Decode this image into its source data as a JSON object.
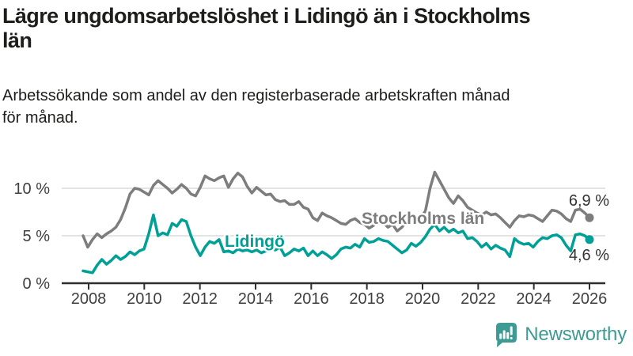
{
  "header": {
    "title_lines": [
      "Lägre ungdomsarbetslöshet i Lidingö än i Stockholms",
      "län"
    ],
    "subtitle_lines": [
      "Arbetssökande som andel av den registerbaserade arbetskraften månad",
      "för månad."
    ]
  },
  "chart_data": {
    "type": "line",
    "title": "Lägre ungdomsarbetslöshet i Lidingö än i Stockholms län",
    "subtitle": "Arbetssökande som andel av den registerbaserade arbetskraften månad för månad.",
    "unit": "%",
    "grid": "horizontal",
    "legend": "inline-labels",
    "x_axis": {
      "range_years": [
        2007.8,
        2026.0
      ],
      "tick_years": [
        2008,
        2010,
        2012,
        2014,
        2016,
        2018,
        2020,
        2022,
        2024,
        2026
      ],
      "tick_labels": [
        "2008",
        "2010",
        "2012",
        "2014",
        "2016",
        "2018",
        "2020",
        "2022",
        "2024",
        "2026"
      ]
    },
    "y_axis": {
      "ylim": [
        0,
        12.5
      ],
      "ticks": [
        {
          "value": 0,
          "label": "0 %"
        },
        {
          "value": 5,
          "label": "5 %"
        },
        {
          "value": 10,
          "label": "10 %"
        }
      ]
    },
    "sampling": "6 points per year, 2008–2026",
    "series": [
      {
        "name": "Stockholms län",
        "color": "#7d7d7d",
        "end_value": 6.9,
        "end_label": "6,9 %",
        "values": [
          5.0,
          3.8,
          4.6,
          5.2,
          4.8,
          5.2,
          5.5,
          5.9,
          6.7,
          7.9,
          9.4,
          10.0,
          9.9,
          9.6,
          9.3,
          10.3,
          10.8,
          10.4,
          10.0,
          9.5,
          9.9,
          10.4,
          10.0,
          9.4,
          9.2,
          10.1,
          11.3,
          11.0,
          10.8,
          11.1,
          11.3,
          10.1,
          11.0,
          11.6,
          11.2,
          10.2,
          9.5,
          10.1,
          9.7,
          9.3,
          9.4,
          8.8,
          8.6,
          8.7,
          8.3,
          8.3,
          8.6,
          8.0,
          7.8,
          6.9,
          6.6,
          7.4,
          7.1,
          6.9,
          6.6,
          6.3,
          6.2,
          6.6,
          6.8,
          6.4,
          6.2,
          5.8,
          6.1,
          6.6,
          6.4,
          5.9,
          6.2,
          5.5,
          5.9,
          6.5,
          6.3,
          6.6,
          6.9,
          7.6,
          10.0,
          11.7,
          10.8,
          9.9,
          9.0,
          8.4,
          9.2,
          8.7,
          8.0,
          7.7,
          7.4,
          7.2,
          7.5,
          7.2,
          7.3,
          6.9,
          6.4,
          5.9,
          6.6,
          7.1,
          7.0,
          7.2,
          7.1,
          6.8,
          6.5,
          7.1,
          7.7,
          7.6,
          7.3,
          6.8,
          6.5,
          7.7,
          7.8,
          7.4,
          6.9
        ]
      },
      {
        "name": "Lidingö",
        "color": "#00a096",
        "end_value": 4.6,
        "end_label": "4,6 %",
        "values": [
          1.3,
          1.2,
          1.1,
          1.9,
          2.5,
          2.0,
          2.4,
          2.9,
          2.5,
          2.8,
          3.3,
          3.0,
          3.4,
          3.6,
          5.2,
          7.2,
          5.0,
          5.3,
          5.1,
          6.3,
          6.0,
          6.7,
          6.5,
          5.0,
          3.8,
          2.9,
          3.8,
          4.4,
          4.2,
          4.6,
          3.3,
          3.4,
          3.2,
          3.6,
          3.4,
          3.5,
          3.3,
          3.5,
          3.2,
          3.4,
          3.6,
          3.5,
          3.8,
          2.9,
          3.2,
          3.6,
          3.4,
          3.7,
          2.9,
          3.4,
          2.9,
          3.3,
          3.0,
          2.6,
          3.0,
          3.6,
          3.8,
          3.7,
          4.1,
          3.8,
          4.7,
          4.3,
          4.4,
          4.7,
          4.5,
          4.4,
          4.0,
          3.6,
          3.2,
          3.5,
          4.2,
          3.9,
          4.3,
          4.9,
          5.7,
          6.2,
          5.5,
          5.9,
          5.4,
          5.7,
          5.3,
          5.5,
          4.7,
          4.8,
          4.4,
          3.8,
          4.2,
          3.6,
          4.0,
          3.7,
          3.5,
          2.8,
          4.7,
          4.3,
          4.1,
          4.2,
          3.8,
          4.4,
          4.8,
          4.7,
          5.0,
          5.1,
          4.8,
          4.0,
          3.4,
          5.1,
          5.2,
          5.0,
          4.6
        ]
      }
    ],
    "colors": {
      "axis": "#2e2e2e",
      "gridline": "#dcdcdc",
      "tick_text": "#3f3f3f",
      "value_label_text": "#333333"
    }
  },
  "footer": {
    "brand": "Newsworthy",
    "brand_color": "#3d9b94",
    "logo_icon": "bar-chart-badge-icon"
  }
}
